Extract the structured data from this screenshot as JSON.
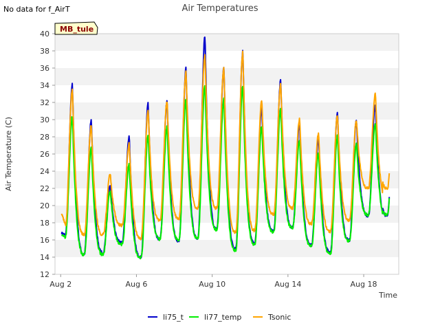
{
  "notice": "No data for f_AirT",
  "badge": "MB_tule",
  "chart_data": {
    "type": "line",
    "title": "Air Temperatures",
    "xlabel": "Time",
    "ylabel": "Air Temperature (C)",
    "xlim": [
      1.7,
      19.85
    ],
    "ylim": [
      12,
      40
    ],
    "x_ticks": [
      2,
      6,
      10,
      14,
      18
    ],
    "x_tick_labels": [
      "Aug 2",
      "Aug 6",
      "Aug 10",
      "Aug 14",
      "Aug 18"
    ],
    "y_ticks": [
      12,
      14,
      16,
      18,
      20,
      22,
      24,
      26,
      28,
      30,
      32,
      34,
      36,
      38,
      40
    ],
    "grid": "horizontal bands",
    "legend_position": "bottom-center",
    "series": [
      {
        "name": "li75_t",
        "color": "#0000cc",
        "min_day": [
          16.6,
          14.4,
          14.5,
          15.7,
          14.0,
          16.1,
          15.9,
          16.2,
          17.3,
          15.0,
          15.6,
          17.0,
          17.5,
          15.4,
          14.6,
          16.0,
          18.8
        ],
        "max_day": [
          34.1,
          30.0,
          22.4,
          28.1,
          31.9,
          32.2,
          36.0,
          39.8,
          36.2,
          38.0,
          31.5,
          34.6,
          29.6,
          28.1,
          30.9,
          29.9,
          31.8
        ],
        "end_value": 18.2
      },
      {
        "name": "li77_temp",
        "color": "#00ee00",
        "min_day": [
          16.3,
          14.3,
          14.3,
          15.5,
          13.9,
          16.1,
          16.0,
          16.2,
          17.2,
          14.8,
          15.5,
          16.9,
          17.4,
          15.3,
          14.4,
          15.9,
          18.9
        ],
        "max_day": [
          30.4,
          26.8,
          21.8,
          24.8,
          28.3,
          29.2,
          32.4,
          34.1,
          32.4,
          34.0,
          29.3,
          31.3,
          27.6,
          26.3,
          28.1,
          27.2,
          29.6
        ],
        "end_value": 18.4
      },
      {
        "name": "Tsonic",
        "color": "#ffa500",
        "min_day": [
          17.6,
          16.6,
          16.6,
          17.7,
          16.2,
          18.3,
          18.5,
          19.7,
          19.7,
          16.9,
          17.1,
          19.0,
          19.7,
          17.9,
          17.0,
          18.3,
          22.0
        ],
        "max_day": [
          33.6,
          29.4,
          23.7,
          27.2,
          31.1,
          32.2,
          35.6,
          37.6,
          36.0,
          37.9,
          32.2,
          34.2,
          30.1,
          28.4,
          30.6,
          30.0,
          33.0
        ],
        "end_value": 20.8
      }
    ],
    "series_start_x": 2.05,
    "series_end_x": 19.35,
    "first_day_start_values": {
      "li75_t": 16.8,
      "li77_temp": 16.6,
      "Tsonic": 19.2
    }
  }
}
